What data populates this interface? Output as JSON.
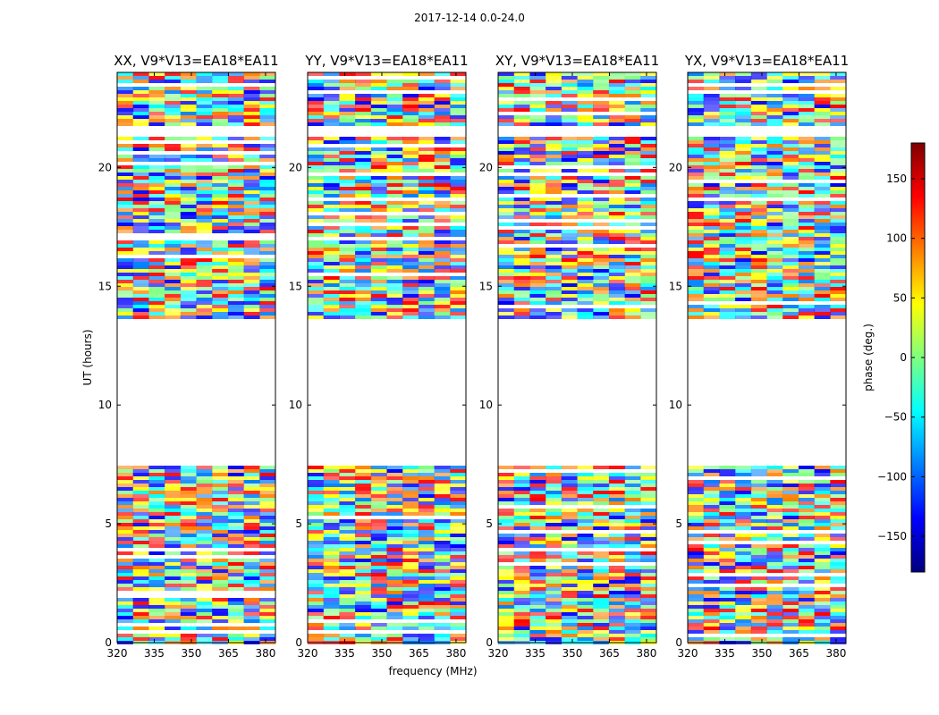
{
  "figure_title": "2017-12-14 0.0-24.0",
  "chart_data": {
    "type": "heatmap",
    "xlabel": "frequency (MHz)",
    "ylabel": "UT (hours)",
    "xlim": [
      320,
      384
    ],
    "ylim": [
      0,
      24
    ],
    "xticks": [
      320,
      335,
      350,
      365,
      380
    ],
    "yticks": [
      0,
      5,
      10,
      15,
      20
    ],
    "panels": [
      {
        "title": "XX, V9*V13=EA18*EA11"
      },
      {
        "title": "YY, V9*V13=EA18*EA11"
      },
      {
        "title": "XY, V9*V13=EA18*EA11"
      },
      {
        "title": "YX, V9*V13=EA18*EA11"
      }
    ],
    "colorbar": {
      "label": "phase (deg.)",
      "range": [
        -180,
        180
      ],
      "ticks": [
        150,
        100,
        50,
        0,
        -50,
        -100,
        -150
      ],
      "tick_labels": [
        "150",
        "100",
        "50",
        "0",
        "−50",
        "−100",
        "−150"
      ],
      "colormap": "jet"
    },
    "data_gap_hours": [
      [
        7.5,
        13.7
      ],
      [
        21.3,
        21.8
      ]
    ],
    "colormap_colors": [
      "#00007f",
      "#0000ff",
      "#007fff",
      "#00ffff",
      "#7fff7f",
      "#ffff00",
      "#ff7f00",
      "#ff0000",
      "#7f0000"
    ]
  }
}
